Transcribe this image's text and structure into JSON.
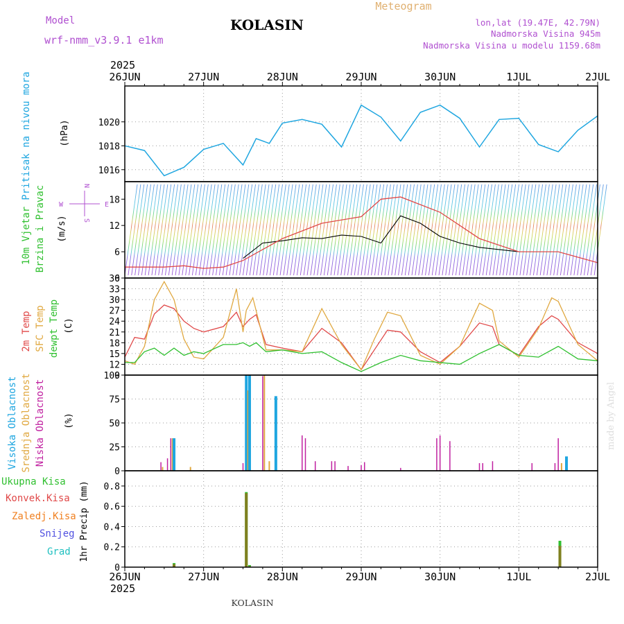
{
  "header": {
    "model_label": "Model",
    "model_name": "wrf-nmm_v3.9.1 e1km",
    "station": "KOLASIN",
    "product": "Meteogram",
    "coords": "lon,lat (19.47E, 42.79N)",
    "elevation": "Nadmorska Visina 945m",
    "model_elevation": "Nadmorska Visina u modelu 1159.68m",
    "year_top": "2025",
    "year_bottom": "2025",
    "footer": "KOLASIN",
    "credit": "made by Angel"
  },
  "colors": {
    "pressure": "#1fa6e0",
    "temp2m": "#e04848",
    "sfc": "#e0a840",
    "dewpt": "#30c030",
    "wind_label": "#30c030",
    "high_cloud": "#1fa6e0",
    "mid_cloud": "#e0a840",
    "low_cloud": "#c020a0",
    "total_precip": "#30c030",
    "conv_precip": "#e04848",
    "frz_precip": "#f08020",
    "snow": "#5050e0",
    "hail": "#20c0c0",
    "header_purple": "#b050d0",
    "meteogram_label": "#e0b070"
  },
  "chart_data": [
    {
      "type": "line",
      "title": "",
      "ylabel": "Pritisak na nivou mora",
      "yunit": "(hPa)",
      "ylim": [
        1015,
        1023
      ],
      "yticks": [
        1016,
        1018,
        1020
      ],
      "x_start": "2025-06-26T00",
      "x_end": "2025-07-02T00",
      "x_ticks": [
        "26JUN",
        "27JUN",
        "28JUN",
        "29JUN",
        "30JUN",
        "1JUL",
        "2JUL"
      ],
      "grid": true,
      "series": [
        {
          "color_key": "pressure",
          "x_hours": [
            0,
            6,
            12,
            18,
            24,
            30,
            36,
            40,
            44,
            48,
            54,
            60,
            66,
            72,
            78,
            84,
            90,
            96,
            102,
            108,
            114,
            120,
            126,
            132,
            138,
            144
          ],
          "values": [
            1018.0,
            1017.6,
            1015.5,
            1016.2,
            1017.7,
            1018.2,
            1016.4,
            1018.6,
            1018.2,
            1019.9,
            1020.2,
            1019.8,
            1017.9,
            1021.4,
            1020.4,
            1018.4,
            1020.8,
            1021.4,
            1020.3,
            1017.9,
            1020.2,
            1020.3,
            1018.1,
            1017.5,
            1019.3,
            1020.5
          ]
        }
      ]
    },
    {
      "type": "line",
      "ylabel": "10m Vjetar Brzina i Pravac",
      "yunit": "(m/s)",
      "ylim": [
        0,
        22
      ],
      "yticks": [
        0,
        6,
        12,
        18
      ],
      "grid": false,
      "legend": [
        "N",
        "W",
        "E",
        "S"
      ],
      "series": [
        {
          "name": "",
          "color": "#000000",
          "x_hours": [
            36,
            42,
            48,
            54,
            60,
            66,
            72,
            78,
            84,
            90,
            96,
            102,
            108,
            114,
            120
          ],
          "values": [
            4.5,
            8,
            8.5,
            9.2,
            9.0,
            9.8,
            9.5,
            8.0,
            14.2,
            12.5,
            9.5,
            8.0,
            7.0,
            6.5,
            6.0
          ]
        },
        {
          "name": "",
          "color": "#e04848",
          "x_hours": [
            0,
            6,
            12,
            18,
            24,
            30,
            36,
            48,
            60,
            72,
            78,
            84,
            96,
            108,
            120,
            132,
            144
          ],
          "values": [
            2.5,
            2.5,
            2.5,
            2.8,
            2.2,
            2.5,
            4.0,
            9.0,
            12.5,
            14.0,
            18.0,
            18.5,
            15.0,
            9.0,
            6.0,
            6.0,
            3.5
          ]
        }
      ]
    },
    {
      "type": "line",
      "ylabel": "2m Temp / SFC Temp / dewpt Temp",
      "yunit": "(C)",
      "ylim": [
        9,
        36
      ],
      "yticks": [
        9,
        12,
        15,
        18,
        21,
        24,
        27,
        30,
        33,
        36
      ],
      "grid": true,
      "series": [
        {
          "name": "2m Temp",
          "color_key": "temp2m",
          "x_hours": [
            0,
            3,
            6,
            9,
            12,
            15,
            18,
            21,
            24,
            30,
            34,
            36,
            38,
            40,
            43,
            48,
            54,
            60,
            66,
            72,
            76,
            80,
            84,
            90,
            96,
            102,
            108,
            112,
            114,
            120,
            126,
            130,
            132,
            138,
            144
          ],
          "values": [
            14,
            19.5,
            19,
            26,
            28.5,
            27.5,
            24,
            22,
            21,
            22.5,
            26.5,
            22.5,
            24.5,
            25.8,
            17.5,
            16.5,
            15.5,
            22,
            18,
            10.5,
            16,
            21.5,
            21,
            15.5,
            12.5,
            17,
            23.5,
            22.5,
            17.5,
            14.5,
            22.5,
            25.5,
            24.5,
            18,
            15
          ]
        },
        {
          "name": "SFC Temp",
          "color_key": "sfc",
          "x_hours": [
            0,
            3,
            6,
            9,
            12,
            15,
            18,
            21,
            24,
            30,
            34,
            36,
            37,
            39,
            43,
            48,
            54,
            60,
            66,
            72,
            76,
            80,
            84,
            90,
            96,
            102,
            108,
            112,
            114,
            120,
            126,
            130,
            132,
            138,
            144
          ],
          "values": [
            13,
            12,
            17,
            30,
            35,
            30,
            19,
            14,
            13.5,
            19.5,
            33,
            21,
            27,
            30.5,
            16,
            16,
            15.5,
            27.5,
            17.5,
            10.5,
            19,
            26.5,
            25.5,
            14.5,
            12,
            17,
            29,
            27,
            18.5,
            14,
            22,
            30.5,
            29.5,
            17.5,
            13
          ]
        },
        {
          "name": "dewpt Temp",
          "color_key": "dewpt",
          "x_hours": [
            0,
            3,
            6,
            9,
            12,
            15,
            18,
            21,
            24,
            30,
            34,
            36,
            38,
            40,
            43,
            48,
            54,
            60,
            66,
            72,
            78,
            84,
            90,
            96,
            102,
            108,
            114,
            120,
            126,
            132,
            138,
            144
          ],
          "values": [
            12.5,
            12.5,
            15.5,
            16.5,
            14.5,
            16.5,
            14.5,
            15.5,
            15,
            17.5,
            17.5,
            18,
            17,
            18,
            15.5,
            16,
            15,
            15.5,
            12.5,
            10,
            12.5,
            14.5,
            13,
            12.5,
            12,
            15,
            17.5,
            14.5,
            14,
            17,
            13.5,
            13
          ]
        }
      ]
    },
    {
      "type": "bar",
      "ylabel": "Visoka Oblacnost / Srednja Oblacnost / Niska Oblacnost",
      "yunit": "(%)",
      "ylim": [
        0,
        100
      ],
      "yticks": [
        0,
        25,
        50,
        75,
        100
      ],
      "grid": true,
      "bars": [
        {
          "layer": "low",
          "hour": 11,
          "value": 9
        },
        {
          "layer": "mid",
          "hour": 11.5,
          "value": 4
        },
        {
          "layer": "low",
          "hour": 13,
          "value": 13
        },
        {
          "layer": "low",
          "hour": 14,
          "value": 34
        },
        {
          "layer": "mid",
          "hour": 14.5,
          "value": 34
        },
        {
          "layer": "high",
          "hour": 15,
          "value": 34
        },
        {
          "layer": "mid",
          "hour": 20,
          "value": 4
        },
        {
          "layer": "low",
          "hour": 36,
          "value": 8
        },
        {
          "layer": "high",
          "hour": 37,
          "value": 100
        },
        {
          "layer": "mid",
          "hour": 37.5,
          "value": 84
        },
        {
          "layer": "high",
          "hour": 38,
          "value": 100
        },
        {
          "layer": "low",
          "hour": 42,
          "value": 99
        },
        {
          "layer": "mid",
          "hour": 42.5,
          "value": 100
        },
        {
          "layer": "mid",
          "hour": 44,
          "value": 10
        },
        {
          "layer": "high",
          "hour": 46,
          "value": 78
        },
        {
          "layer": "low",
          "hour": 54,
          "value": 37
        },
        {
          "layer": "low",
          "hour": 55,
          "value": 34
        },
        {
          "layer": "low",
          "hour": 58,
          "value": 10
        },
        {
          "layer": "low",
          "hour": 63,
          "value": 10
        },
        {
          "layer": "low",
          "hour": 64,
          "value": 10
        },
        {
          "layer": "low",
          "hour": 68,
          "value": 5
        },
        {
          "layer": "low",
          "hour": 72,
          "value": 6
        },
        {
          "layer": "low",
          "hour": 73,
          "value": 9
        },
        {
          "layer": "low",
          "hour": 84,
          "value": 3
        },
        {
          "layer": "low",
          "hour": 95,
          "value": 34
        },
        {
          "layer": "low",
          "hour": 96,
          "value": 37
        },
        {
          "layer": "low",
          "hour": 99,
          "value": 31
        },
        {
          "layer": "low",
          "hour": 108,
          "value": 8
        },
        {
          "layer": "low",
          "hour": 109,
          "value": 8
        },
        {
          "layer": "low",
          "hour": 112,
          "value": 10
        },
        {
          "layer": "low",
          "hour": 124,
          "value": 8
        },
        {
          "layer": "low",
          "hour": 131,
          "value": 8
        },
        {
          "layer": "low",
          "hour": 132,
          "value": 34
        },
        {
          "layer": "mid",
          "hour": 133,
          "value": 8
        },
        {
          "layer": "high",
          "hour": 134.5,
          "value": 15
        }
      ]
    },
    {
      "type": "bar",
      "ylabel": "1hr Precip",
      "yunit": "(mm)",
      "ylim": [
        0,
        0.95
      ],
      "yticks": [
        0,
        0.2,
        0.4,
        0.6,
        0.8
      ],
      "grid": true,
      "series_names": [
        "Ukupna Kisa",
        "Konvek.Kisa",
        "Zaledj.Kisa",
        "Snijeg",
        "Grad"
      ],
      "bars": [
        {
          "hour": 15,
          "total": 0.04,
          "conv": 0.03
        },
        {
          "hour": 37,
          "total": 0.74,
          "conv": 0.73
        },
        {
          "hour": 38,
          "total": 0.02,
          "conv": 0.01
        },
        {
          "hour": 132.5,
          "total": 0.26,
          "conv": 0.21
        }
      ]
    }
  ]
}
